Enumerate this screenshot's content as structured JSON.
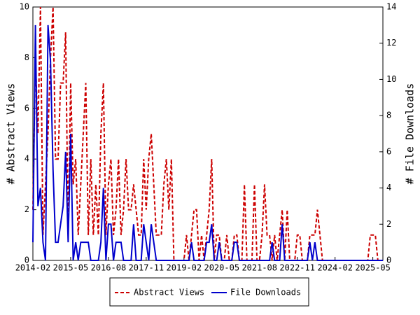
{
  "chart_data": {
    "type": "line",
    "x": [
      "2014-02",
      "2014-03",
      "2014-04",
      "2014-05",
      "2014-06",
      "2014-07",
      "2014-08",
      "2014-09",
      "2014-10",
      "2014-11",
      "2014-12",
      "2015-01",
      "2015-02",
      "2015-03",
      "2015-04",
      "2015-05",
      "2015-06",
      "2015-07",
      "2015-08",
      "2015-09",
      "2015-10",
      "2015-11",
      "2015-12",
      "2016-01",
      "2016-02",
      "2016-03",
      "2016-04",
      "2016-05",
      "2016-06",
      "2016-07",
      "2016-08",
      "2016-09",
      "2016-10",
      "2016-11",
      "2016-12",
      "2017-01",
      "2017-02",
      "2017-03",
      "2017-04",
      "2017-05",
      "2017-06",
      "2017-07",
      "2017-08",
      "2017-09",
      "2017-10",
      "2017-11",
      "2017-12",
      "2018-01",
      "2018-02",
      "2018-03",
      "2018-04",
      "2018-05",
      "2018-06",
      "2018-07",
      "2018-08",
      "2018-09",
      "2018-10",
      "2018-11",
      "2018-12",
      "2019-01",
      "2019-02",
      "2019-03",
      "2019-04",
      "2019-05",
      "2019-06",
      "2019-07",
      "2019-08",
      "2019-09",
      "2019-10",
      "2019-11",
      "2019-12",
      "2020-01",
      "2020-02",
      "2020-03",
      "2020-04",
      "2020-05",
      "2020-06",
      "2020-07",
      "2020-08",
      "2020-09",
      "2020-10",
      "2020-11",
      "2020-12",
      "2021-01",
      "2021-02",
      "2021-03",
      "2021-04",
      "2021-05",
      "2021-06",
      "2021-07",
      "2021-08",
      "2021-09",
      "2021-10",
      "2021-11",
      "2021-12",
      "2022-01",
      "2022-02",
      "2022-03",
      "2022-04",
      "2022-05",
      "2022-06",
      "2022-07",
      "2022-08",
      "2022-09",
      "2022-10",
      "2022-11",
      "2022-12",
      "2023-01",
      "2023-02",
      "2023-03",
      "2023-04",
      "2023-05",
      "2023-06",
      "2023-07",
      "2023-08",
      "2023-09",
      "2023-10",
      "2023-11",
      "2023-12",
      "2024-01",
      "2024-02",
      "2024-03",
      "2024-04",
      "2024-05",
      "2024-06",
      "2024-07",
      "2024-08",
      "2024-09",
      "2024-10",
      "2024-11",
      "2024-12",
      "2025-01",
      "2025-02",
      "2025-03",
      "2025-04",
      "2025-05",
      "2025-06",
      "2025-07",
      "2025-08",
      "2025-09"
    ],
    "series": [
      {
        "name": "Abstract Views",
        "color": "#cc0000",
        "axis": "y",
        "values": [
          2,
          8,
          5,
          10,
          1,
          3,
          5,
          8,
          10,
          4,
          4,
          7,
          7,
          9,
          1,
          7,
          3,
          4,
          1,
          3,
          5,
          7,
          1,
          4,
          1,
          3,
          1,
          5,
          7,
          1,
          3,
          4,
          1,
          2,
          4,
          1,
          2,
          4,
          2,
          2,
          3,
          2,
          1,
          1,
          4,
          2,
          4,
          5,
          3,
          1,
          1,
          1,
          3,
          4,
          2,
          4,
          0,
          0,
          0,
          0,
          0,
          1,
          0,
          1,
          2,
          2,
          0,
          1,
          0,
          1,
          2,
          4,
          0,
          1,
          1,
          0,
          0,
          1,
          0,
          0,
          1,
          1,
          0,
          0,
          3,
          0,
          0,
          0,
          3,
          0,
          0,
          1,
          3,
          1,
          1,
          0,
          1,
          0,
          1,
          2,
          0,
          2,
          0,
          0,
          0,
          1,
          1,
          0,
          0,
          0,
          1,
          1,
          1,
          2,
          1,
          0,
          0,
          0,
          0,
          0,
          0,
          0,
          0,
          0,
          0,
          0,
          0,
          0,
          0,
          0,
          0,
          0,
          0,
          0,
          1,
          1,
          1,
          0,
          0,
          0
        ]
      },
      {
        "name": "File Downloads",
        "color": "#0000cc",
        "axis": "y2",
        "values": [
          1,
          13,
          3,
          4,
          1,
          0,
          13,
          11,
          5,
          1,
          1,
          2,
          3,
          6,
          1,
          7,
          0,
          1,
          0,
          1,
          1,
          1,
          1,
          0,
          0,
          0,
          0,
          1,
          4,
          0,
          2,
          2,
          0,
          1,
          1,
          1,
          0,
          0,
          0,
          0,
          2,
          0,
          0,
          0,
          2,
          1,
          0,
          2,
          1,
          0,
          0,
          0,
          0,
          0,
          0,
          0,
          0,
          0,
          0,
          0,
          0,
          0,
          0,
          1,
          0,
          0,
          0,
          0,
          0,
          1,
          1,
          2,
          0,
          0,
          1,
          0,
          0,
          0,
          0,
          0,
          1,
          1,
          0,
          0,
          0,
          0,
          0,
          0,
          0,
          0,
          0,
          0,
          0,
          0,
          0,
          1,
          0,
          0,
          0,
          2,
          0,
          0,
          0,
          0,
          0,
          0,
          0,
          0,
          0,
          0,
          1,
          0,
          1,
          0,
          0,
          0,
          0,
          0,
          0,
          0,
          0,
          0,
          0,
          0,
          0,
          0,
          0,
          0,
          0,
          0,
          0,
          0,
          0,
          0,
          0,
          0,
          0,
          0,
          0,
          0
        ]
      }
    ],
    "xlim": [
      "2014-02",
      "2025-09"
    ],
    "xticks": [
      "2014-02",
      "2015-05",
      "2016-08",
      "2017-11",
      "2019-02",
      "2020-05",
      "2021-08",
      "2022-11",
      "2024-02",
      "2025-05"
    ],
    "ylim": [
      0,
      10
    ],
    "yticks": [
      0,
      2,
      4,
      6,
      8,
      10
    ],
    "y2lim": [
      0,
      14
    ],
    "y2ticks": [
      0,
      2,
      4,
      6,
      8,
      10,
      12,
      14
    ],
    "ylabel": "# Abstract Views",
    "y2label": "# File Downloads",
    "legend": "bottom"
  }
}
